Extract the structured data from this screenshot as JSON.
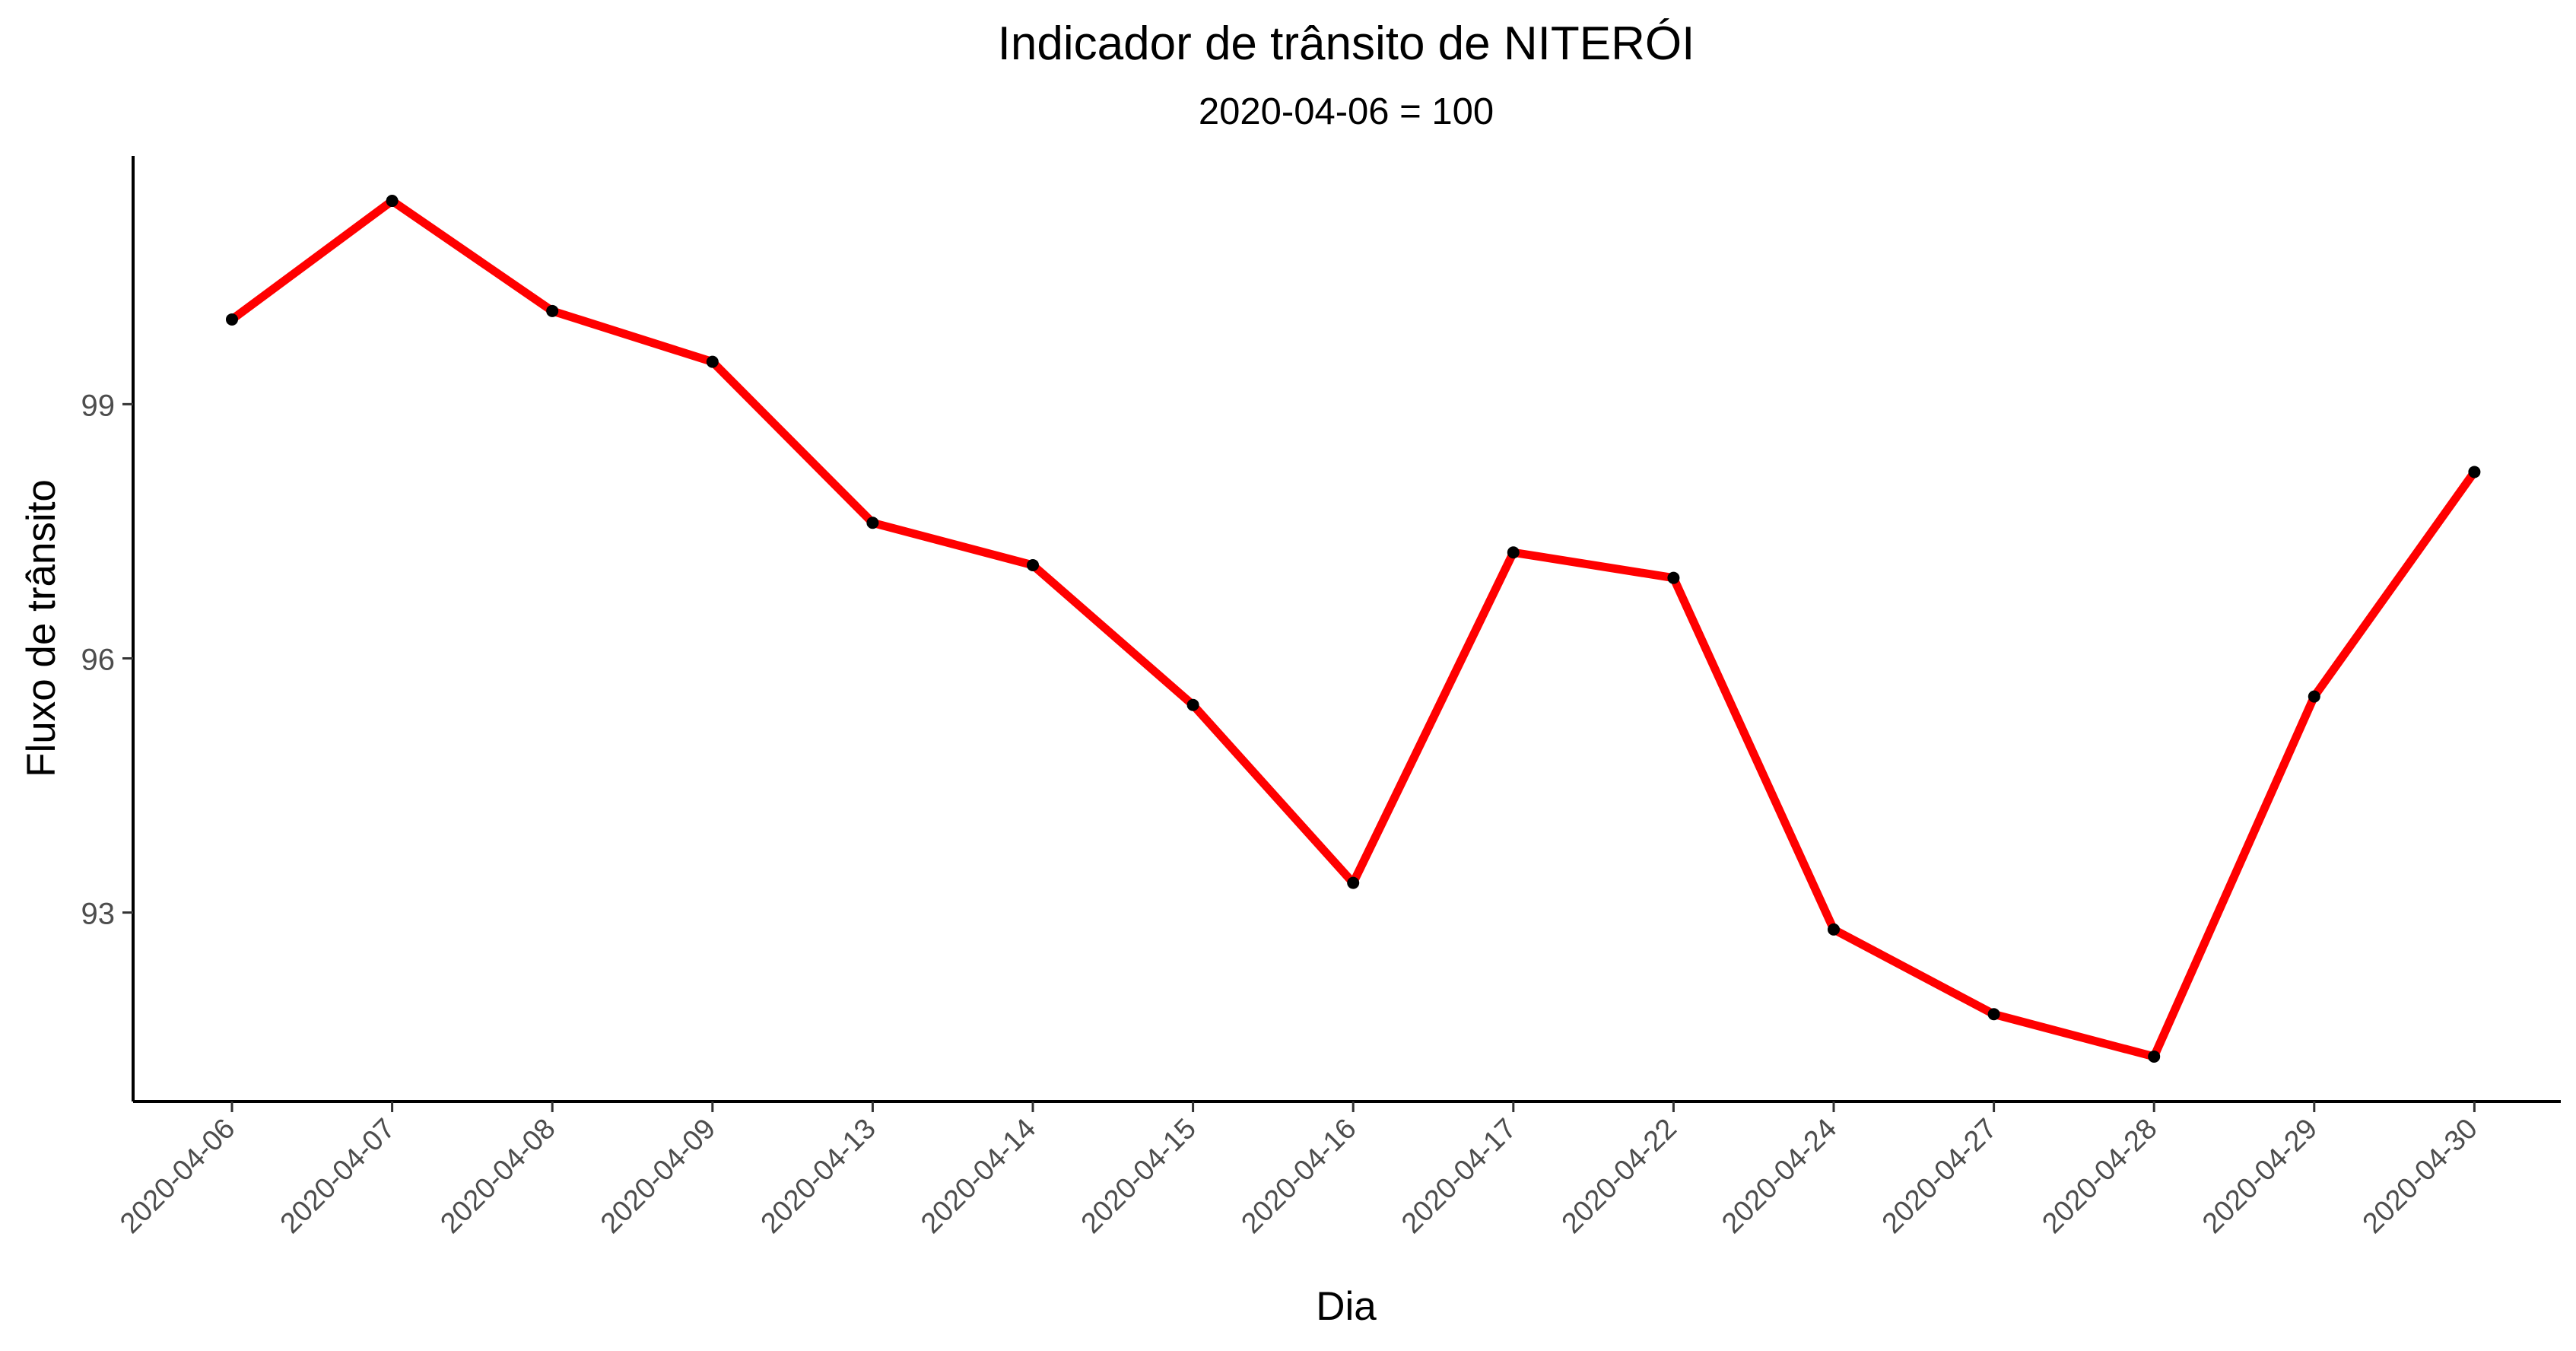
{
  "chart_data": {
    "type": "line",
    "title": "Indicador de trânsito de NITERÓI",
    "subtitle": "2020-04-06 = 100",
    "xlabel": "Dia",
    "ylabel": "Fluxo de trânsito",
    "categories": [
      "2020-04-06",
      "2020-04-07",
      "2020-04-08",
      "2020-04-09",
      "2020-04-13",
      "2020-04-14",
      "2020-04-15",
      "2020-04-16",
      "2020-04-17",
      "2020-04-22",
      "2020-04-24",
      "2020-04-27",
      "2020-04-28",
      "2020-04-29",
      "2020-04-30"
    ],
    "values": [
      100.0,
      101.4,
      100.1,
      99.5,
      97.6,
      97.1,
      95.45,
      93.35,
      97.25,
      96.95,
      92.8,
      91.8,
      91.3,
      95.55,
      98.2
    ],
    "y_ticks": [
      93,
      96,
      99
    ],
    "ylim": [
      90.77,
      101.93
    ],
    "grid": false,
    "legend": "none",
    "line_color": "#ff0000",
    "point_color": "#000000"
  }
}
